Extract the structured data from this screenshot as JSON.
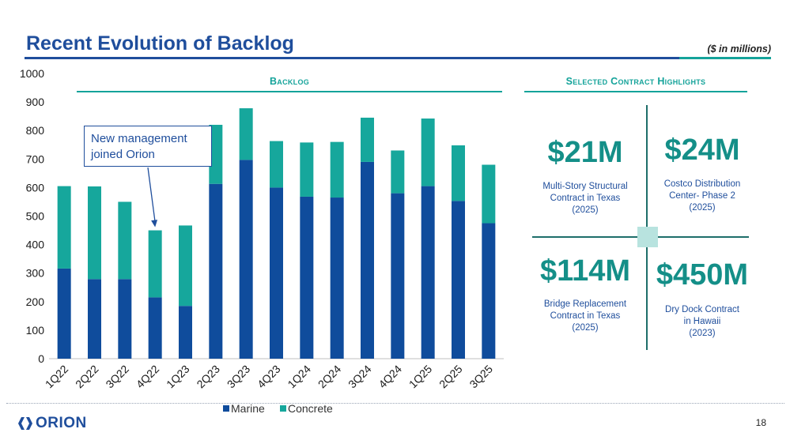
{
  "header": {
    "title": "Recent Evolution of Backlog",
    "units": "($ in millions)"
  },
  "sections": {
    "backlog": "Backlog",
    "highlights": "Selected Contract Highlights"
  },
  "annotation": {
    "lines": [
      "New management",
      "joined Orion"
    ],
    "target": "4Q22"
  },
  "highlights": [
    {
      "value": "$21M",
      "desc": [
        "Multi-Story Structural",
        "Contract in Texas",
        "(2025)"
      ]
    },
    {
      "value": "$24M",
      "desc": [
        "Costco Distribution",
        "Center- Phase 2",
        "(2025)"
      ]
    },
    {
      "value": "$114M",
      "desc": [
        "Bridge Replacement",
        "Contract in Texas",
        "(2025)"
      ]
    },
    {
      "value": "$450M",
      "desc": [
        "Dry Dock Contract",
        "in Hawaii",
        "(2023)"
      ]
    }
  ],
  "footer": {
    "logo_text": "ORION",
    "page_number": "18"
  },
  "colors": {
    "marine": "#0f4c9c",
    "concrete": "#16a79c",
    "title_blue": "#1f4e9c",
    "accent_teal": "#14a39a"
  },
  "chart_data": {
    "type": "bar",
    "stacked": true,
    "categories": [
      "1Q22",
      "2Q22",
      "3Q22",
      "4Q22",
      "1Q23",
      "2Q23",
      "3Q23",
      "4Q23",
      "1Q24",
      "2Q24",
      "3Q24",
      "4Q24",
      "1Q25",
      "2Q25",
      "3Q25"
    ],
    "series": [
      {
        "name": "Marine",
        "values": [
          316,
          279,
          279,
          215,
          185,
          613,
          697,
          600,
          568,
          565,
          690,
          580,
          605,
          553,
          475
        ]
      },
      {
        "name": "Concrete",
        "values": [
          289,
          325,
          271,
          235,
          282,
          207,
          181,
          163,
          190,
          195,
          155,
          150,
          237,
          195,
          205
        ]
      }
    ],
    "ylim": [
      0,
      1000
    ],
    "yticks": [
      0,
      100,
      200,
      300,
      400,
      500,
      600,
      700,
      800,
      900,
      1000
    ],
    "legend_position": "bottom",
    "grid": false
  }
}
